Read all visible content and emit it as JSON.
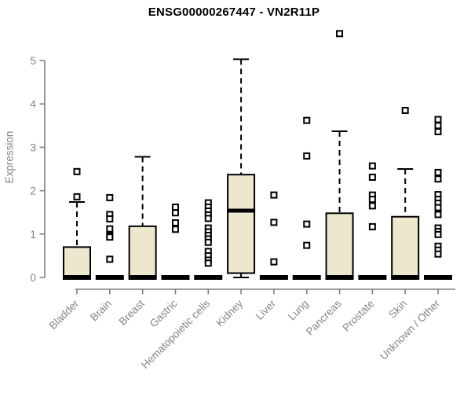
{
  "colors": {
    "box_fill": "#EDE8CD",
    "box_stroke": "#000000",
    "median": "#000000",
    "whisker": "#000000",
    "outlier_fill": "#FFFFFF",
    "outlier_stroke": "#000000",
    "axis": "#808080",
    "tick_label": "#858585",
    "title_text": "#000000",
    "background": "#FFFFFF"
  },
  "chart_data": {
    "type": "boxplot",
    "title": "ENSG00000267447 - VN2R11P",
    "ylabel": "Expression",
    "xlabel": "",
    "ylim": [
      0,
      5
    ],
    "y_ticks": [
      0,
      1,
      2,
      3,
      4,
      5
    ],
    "grid": false,
    "legend": false,
    "categories": [
      "Bladder",
      "Brain",
      "Breast",
      "Gastric",
      "Hematopoietic cells",
      "Kidney",
      "Liver",
      "Lung",
      "Pancreas",
      "Prostate",
      "Skin",
      "Unknown / Other"
    ],
    "series": [
      {
        "label": "Bladder",
        "q1": 0,
        "median": 0,
        "q3": 0.7,
        "whisker_low": 0,
        "whisker_high": 1.74,
        "outliers": [
          2.44,
          1.86
        ]
      },
      {
        "label": "Brain",
        "q1": 0,
        "median": 0,
        "q3": 0,
        "whisker_low": 0,
        "whisker_high": 0,
        "outliers": [
          1.84,
          1.45,
          1.35,
          1.12,
          0.96,
          0.93,
          0.42
        ]
      },
      {
        "label": "Breast",
        "q1": 0,
        "median": 0,
        "q3": 1.18,
        "whisker_low": 0,
        "whisker_high": 2.78,
        "outliers": []
      },
      {
        "label": "Gastric",
        "q1": 0,
        "median": 0,
        "q3": 0,
        "whisker_low": 0,
        "whisker_high": 0,
        "outliers": [
          1.62,
          1.49,
          1.26,
          1.11
        ]
      },
      {
        "label": "Hematopoietic cells",
        "q1": 0,
        "median": 0,
        "q3": 0,
        "whisker_low": 0,
        "whisker_high": 0,
        "outliers": [
          1.72,
          1.62,
          1.53,
          1.44,
          1.36,
          1.14,
          1.05,
          0.97,
          0.89,
          0.81,
          0.6,
          0.5,
          0.4,
          0.33
        ]
      },
      {
        "label": "Kidney",
        "q1": 0.1,
        "median": 1.54,
        "q3": 2.37,
        "whisker_low": 0,
        "whisker_high": 5.03,
        "outliers": []
      },
      {
        "label": "Liver",
        "q1": 0,
        "median": 0,
        "q3": 0,
        "whisker_low": 0,
        "whisker_high": 0,
        "outliers": [
          1.9,
          1.27,
          0.36
        ]
      },
      {
        "label": "Lung",
        "q1": 0,
        "median": 0,
        "q3": 0,
        "whisker_low": 0,
        "whisker_high": 0,
        "outliers": [
          3.62,
          2.8,
          1.23,
          0.74
        ]
      },
      {
        "label": "Pancreas",
        "q1": 0,
        "median": 0,
        "q3": 1.48,
        "whisker_low": 0,
        "whisker_high": 3.37,
        "outliers": [
          5.62
        ]
      },
      {
        "label": "Prostate",
        "q1": 0,
        "median": 0,
        "q3": 0,
        "whisker_low": 0,
        "whisker_high": 0,
        "outliers": [
          2.57,
          2.31,
          1.9,
          1.8,
          1.65,
          1.17
        ]
      },
      {
        "label": "Skin",
        "q1": 0,
        "median": 0,
        "q3": 1.4,
        "whisker_low": 0,
        "whisker_high": 2.5,
        "outliers": [
          3.85
        ]
      },
      {
        "label": "Unknown / Other",
        "q1": 0,
        "median": 0,
        "q3": 0,
        "whisker_low": 0,
        "whisker_high": 0,
        "outliers": [
          3.64,
          3.5,
          3.36,
          2.42,
          2.27,
          1.91,
          1.8,
          1.71,
          1.61,
          1.45,
          1.14,
          1.06,
          0.99,
          0.72,
          0.63,
          0.54
        ]
      }
    ]
  }
}
